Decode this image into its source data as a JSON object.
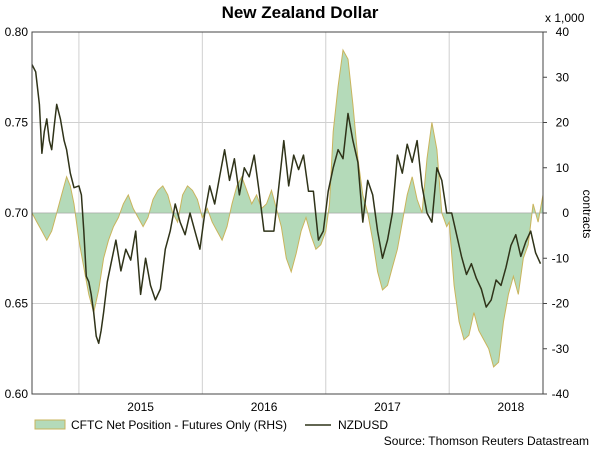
{
  "chart_data": {
    "type": "line",
    "title": "New Zealand Dollar",
    "right_axis_unit": "x 1,000",
    "right_axis_label": "contracts",
    "source": "Source: Thomson Reuters Datastream",
    "x_tick_labels": [
      "2015",
      "2016",
      "2017",
      "2018"
    ],
    "left_axis": {
      "ylim": [
        0.6,
        0.8
      ],
      "ticks": [
        "0.80",
        "0.75",
        "0.70",
        "0.65",
        "0.60"
      ]
    },
    "right_axis": {
      "ylim": [
        -40,
        40
      ],
      "ticks": [
        "40",
        "30",
        "20",
        "10",
        "0",
        "-10",
        "-20",
        "-30",
        "-40"
      ]
    },
    "xlim": [
      2014.62,
      2018.76
    ],
    "grid": true,
    "legend_position": "bottom-left",
    "colors": {
      "area_fill": "#b4dab9",
      "area_edge": "#c9b45c",
      "line": "#2f3319",
      "grid": "#d0d0d0"
    },
    "series": [
      {
        "name": "CFTC Net Position - Futures Only (RHS)",
        "kind": "area",
        "axis": "right",
        "x": [
          2014.62,
          2014.66,
          2014.7,
          2014.74,
          2014.78,
          2014.82,
          2014.86,
          2014.9,
          2014.93,
          2014.96,
          2015.0,
          2015.04,
          2015.08,
          2015.12,
          2015.16,
          2015.2,
          2015.24,
          2015.28,
          2015.32,
          2015.36,
          2015.4,
          2015.44,
          2015.48,
          2015.52,
          2015.56,
          2015.6,
          2015.64,
          2015.68,
          2015.72,
          2015.76,
          2015.8,
          2015.84,
          2015.88,
          2015.92,
          2015.96,
          2016.0,
          2016.04,
          2016.08,
          2016.12,
          2016.16,
          2016.2,
          2016.24,
          2016.28,
          2016.32,
          2016.36,
          2016.4,
          2016.44,
          2016.48,
          2016.52,
          2016.56,
          2016.6,
          2016.64,
          2016.68,
          2016.72,
          2016.76,
          2016.8,
          2016.84,
          2016.88,
          2016.92,
          2016.96,
          2017.0,
          2017.03,
          2017.06,
          2017.1,
          2017.14,
          2017.18,
          2017.22,
          2017.26,
          2017.3,
          2017.34,
          2017.38,
          2017.42,
          2017.46,
          2017.5,
          2017.54,
          2017.58,
          2017.62,
          2017.66,
          2017.7,
          2017.74,
          2017.78,
          2017.82,
          2017.86,
          2017.9,
          2017.94,
          2017.98,
          2018.0,
          2018.04,
          2018.08,
          2018.12,
          2018.16,
          2018.2,
          2018.24,
          2018.28,
          2018.32,
          2018.36,
          2018.4,
          2018.44,
          2018.48,
          2018.52,
          2018.56,
          2018.6,
          2018.64,
          2018.68,
          2018.72,
          2018.76
        ],
        "values": [
          0,
          -2,
          -4,
          -6,
          -4,
          0,
          4,
          8,
          6,
          2,
          -6,
          -12,
          -18,
          -22,
          -17,
          -10,
          -6,
          -3,
          -1,
          2,
          4,
          1,
          -1,
          -3,
          -1,
          3,
          5,
          6,
          4,
          0,
          -2,
          4,
          6,
          5,
          3,
          -1,
          1,
          -2,
          -4,
          -6,
          -3,
          2,
          6,
          8,
          5,
          2,
          4,
          1,
          2,
          5,
          1,
          -3,
          -10,
          -13,
          -9,
          -4,
          -1,
          -5,
          -8,
          -7,
          -4,
          2,
          18,
          28,
          36,
          34,
          24,
          12,
          4,
          0,
          -6,
          -13,
          -17,
          -16,
          -12,
          -8,
          -2,
          4,
          8,
          3,
          0,
          12,
          20,
          14,
          0,
          -3,
          -2,
          -16,
          -24,
          -28,
          -27,
          -22,
          -26,
          -28,
          -30,
          -34,
          -33,
          -24,
          -18,
          -14,
          -18,
          -10,
          -7,
          2,
          -2,
          4
        ]
      },
      {
        "name": "NZDUSD",
        "kind": "line",
        "axis": "left",
        "x": [
          2014.62,
          2014.65,
          2014.68,
          2014.7,
          2014.72,
          2014.74,
          2014.76,
          2014.78,
          2014.8,
          2014.82,
          2014.85,
          2014.88,
          2014.9,
          2014.93,
          2014.96,
          2015.0,
          2015.02,
          2015.04,
          2015.06,
          2015.08,
          2015.1,
          2015.12,
          2015.14,
          2015.16,
          2015.18,
          2015.2,
          2015.23,
          2015.26,
          2015.3,
          2015.34,
          2015.38,
          2015.42,
          2015.46,
          2015.5,
          2015.54,
          2015.58,
          2015.62,
          2015.66,
          2015.7,
          2015.74,
          2015.78,
          2015.82,
          2015.86,
          2015.9,
          2015.94,
          2015.98,
          2016.02,
          2016.06,
          2016.1,
          2016.14,
          2016.18,
          2016.22,
          2016.26,
          2016.3,
          2016.34,
          2016.38,
          2016.42,
          2016.46,
          2016.5,
          2016.54,
          2016.58,
          2016.62,
          2016.66,
          2016.7,
          2016.74,
          2016.78,
          2016.82,
          2016.86,
          2016.9,
          2016.94,
          2016.98,
          2017.02,
          2017.06,
          2017.1,
          2017.14,
          2017.18,
          2017.22,
          2017.26,
          2017.3,
          2017.34,
          2017.38,
          2017.42,
          2017.46,
          2017.5,
          2017.54,
          2017.58,
          2017.62,
          2017.66,
          2017.7,
          2017.74,
          2017.78,
          2017.82,
          2017.86,
          2017.9,
          2017.94,
          2017.98,
          2018.02,
          2018.06,
          2018.1,
          2018.14,
          2018.18,
          2018.22,
          2018.26,
          2018.3,
          2018.34,
          2018.38,
          2018.42,
          2018.46,
          2018.5,
          2018.54,
          2018.58,
          2018.62,
          2018.66,
          2018.7,
          2018.74
        ],
        "values": [
          0.782,
          0.778,
          0.76,
          0.733,
          0.745,
          0.752,
          0.74,
          0.735,
          0.748,
          0.76,
          0.752,
          0.74,
          0.735,
          0.722,
          0.714,
          0.715,
          0.71,
          0.69,
          0.665,
          0.662,
          0.655,
          0.645,
          0.632,
          0.628,
          0.635,
          0.645,
          0.662,
          0.672,
          0.685,
          0.668,
          0.68,
          0.674,
          0.69,
          0.655,
          0.675,
          0.66,
          0.652,
          0.658,
          0.68,
          0.69,
          0.705,
          0.695,
          0.688,
          0.7,
          0.69,
          0.68,
          0.7,
          0.715,
          0.705,
          0.72,
          0.735,
          0.718,
          0.73,
          0.71,
          0.725,
          0.72,
          0.732,
          0.712,
          0.69,
          0.69,
          0.69,
          0.715,
          0.74,
          0.715,
          0.732,
          0.724,
          0.732,
          0.712,
          0.712,
          0.685,
          0.69,
          0.712,
          0.725,
          0.735,
          0.73,
          0.755,
          0.74,
          0.728,
          0.695,
          0.718,
          0.71,
          0.69,
          0.675,
          0.685,
          0.7,
          0.732,
          0.722,
          0.738,
          0.728,
          0.74,
          0.715,
          0.7,
          0.695,
          0.725,
          0.718,
          0.7,
          0.7,
          0.688,
          0.676,
          0.666,
          0.672,
          0.664,
          0.658,
          0.648,
          0.652,
          0.663,
          0.66,
          0.67,
          0.682,
          0.688,
          0.676,
          0.684,
          0.69,
          0.678,
          0.672
        ]
      }
    ]
  }
}
